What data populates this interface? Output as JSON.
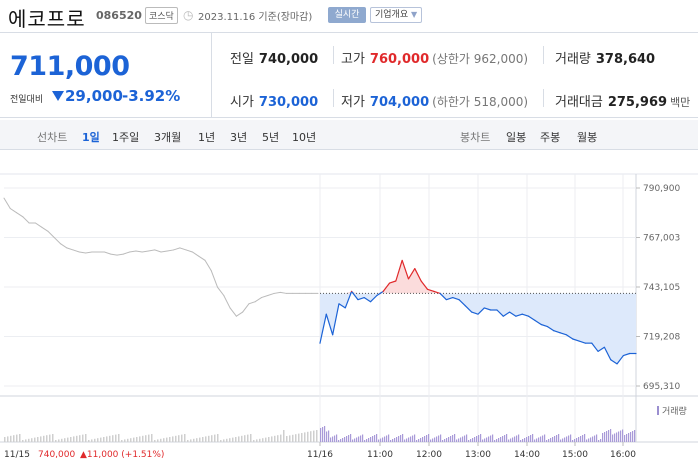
{
  "header": {
    "name": "에코프로",
    "code": "086520",
    "market": "코스닥",
    "as_of": "2023.11.16 기준(장마감)",
    "realtime_label": "실시간",
    "company_info_label": "기업개요"
  },
  "quote": {
    "price": "711,000",
    "change_label": "전일대비",
    "change_amount": "29,000",
    "change_percent": "-3.92%",
    "prev_close": {
      "label": "전일",
      "value": "740,000"
    },
    "high": {
      "label": "고가",
      "value": "760,000",
      "limit": "(상한가 962,000)"
    },
    "volume": {
      "label": "거래량",
      "value": "378,640"
    },
    "open": {
      "label": "시가",
      "value": "730,000"
    },
    "low": {
      "label": "저가",
      "value": "704,000",
      "limit": "(하한가 518,000)"
    },
    "trade_value": {
      "label": "거래대금",
      "value": "275,969",
      "unit": "백만"
    }
  },
  "tabs": {
    "line_group": "선차트",
    "periods": [
      "1일",
      "1주일",
      "3개월",
      "1년",
      "3년",
      "5년",
      "10년"
    ],
    "active_period": "1일",
    "candle_group": "봉차트",
    "candles": [
      "일봉",
      "주봉",
      "월봉"
    ]
  },
  "colors": {
    "up": "#e0292b",
    "down": "#1c63d6",
    "prev_day": "#bbbbbb",
    "fill": "#dde9fb"
  },
  "chart_data": {
    "type": "line",
    "y_ticks": [
      "790,900",
      "767,003",
      "743,105",
      "719,208",
      "695,310"
    ],
    "ylim": [
      695310,
      790900
    ],
    "prev_close": 740000,
    "x_ticks": [
      "11/16",
      "11:00",
      "12:00",
      "13:00",
      "14:00",
      "15:00",
      "16:00"
    ],
    "volume_label": "거래량",
    "prev_day_label": "11/15",
    "prev_day_close": "740,000",
    "prev_day_change": "▲11,000 (+1.51%)",
    "series": [
      {
        "name": "11/15",
        "x": [
          0,
          2,
          4,
          6,
          8,
          10,
          12,
          14,
          16,
          18,
          20,
          22,
          24,
          26,
          28,
          30,
          32,
          34,
          36,
          38,
          40,
          42,
          44,
          46,
          48,
          50,
          52,
          54,
          56,
          58,
          60,
          62,
          64,
          66,
          68,
          70,
          72,
          74,
          76,
          78,
          80,
          82,
          84,
          86,
          88,
          90,
          92,
          94,
          96,
          98,
          100
        ],
        "values": [
          786000,
          781000,
          779000,
          777000,
          774000,
          774000,
          772000,
          770000,
          767000,
          764000,
          762000,
          761000,
          760000,
          759500,
          760000,
          760000,
          760000,
          759000,
          758500,
          759000,
          760000,
          760500,
          760000,
          760500,
          761000,
          760000,
          760500,
          761000,
          762000,
          761000,
          760000,
          758000,
          756000,
          751000,
          743000,
          739000,
          733000,
          729000,
          731000,
          735000,
          736000,
          738000,
          739000,
          740000,
          740500,
          740000,
          740000,
          740000,
          740000,
          740000,
          740000
        ]
      },
      {
        "name": "11/16",
        "x": [
          0,
          2,
          4,
          6,
          8,
          10,
          12,
          14,
          16,
          18,
          20,
          22,
          24,
          26,
          28,
          30,
          32,
          34,
          36,
          38,
          40,
          42,
          44,
          46,
          48,
          50,
          52,
          54,
          56,
          58,
          60,
          62,
          64,
          66,
          68,
          70,
          72,
          74,
          76,
          78,
          80,
          82,
          84,
          86,
          88,
          90,
          92,
          94,
          96,
          98,
          100
        ],
        "values": [
          716000,
          730000,
          720000,
          735000,
          733000,
          741000,
          737000,
          738000,
          736000,
          739000,
          741000,
          745000,
          746000,
          756000,
          747000,
          752000,
          746000,
          742000,
          741000,
          740000,
          737000,
          738000,
          737000,
          734000,
          731000,
          730000,
          733000,
          732000,
          732000,
          729000,
          731000,
          729000,
          730000,
          729000,
          727000,
          725000,
          724000,
          722000,
          721000,
          720000,
          718000,
          717000,
          716000,
          716000,
          712000,
          714000,
          708000,
          706000,
          710000,
          711000,
          711000
        ]
      }
    ]
  }
}
